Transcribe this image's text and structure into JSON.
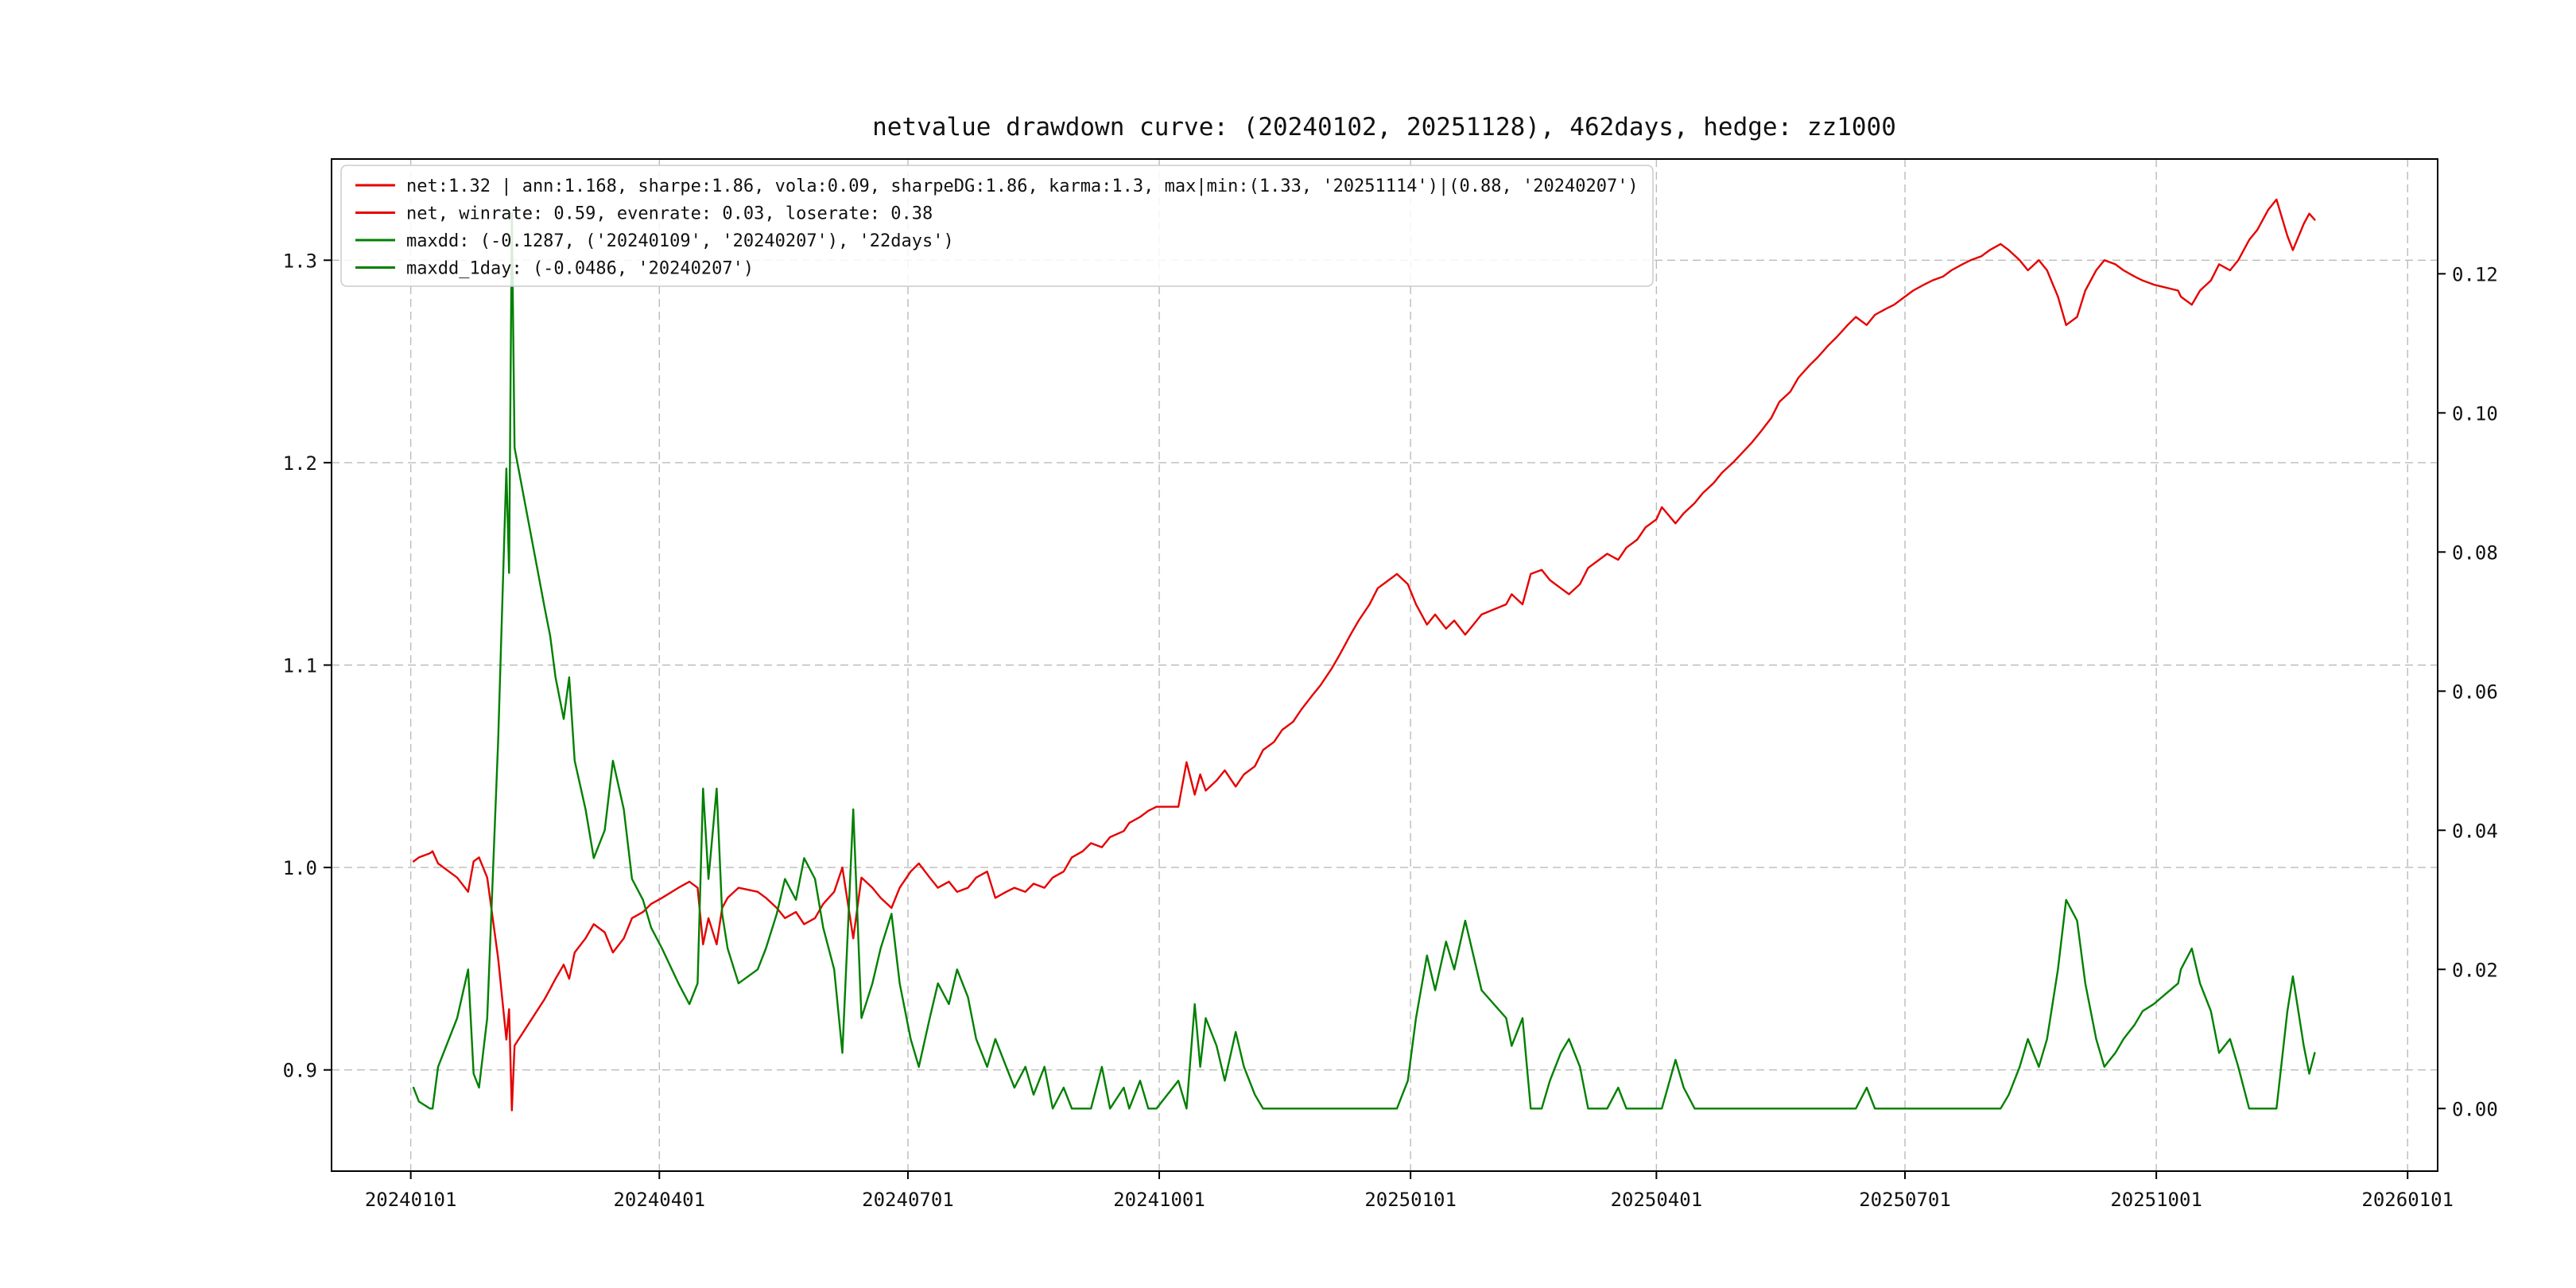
{
  "figure": {
    "background": "#ffffff"
  },
  "legend": {
    "entries": [
      {
        "label": "net:1.32 | ann:1.168, sharpe:1.86, vola:0.09, sharpeDG:1.86, karma:1.3, max|min:(1.33, '20251114')|(0.88, '20240207')",
        "color": "#e60000"
      },
      {
        "label": "net, winrate: 0.59, evenrate: 0.03, loserate: 0.38",
        "color": "#e60000"
      },
      {
        "label": "maxdd: (-0.1287, ('20240109', '20240207'), '22days')",
        "color": "#008000"
      },
      {
        "label": "maxdd_1day: (-0.0486, '20240207')",
        "color": "#008000"
      }
    ]
  },
  "chart_data": {
    "type": "line",
    "title": "netvalue drawdown curve: (20240102, 20251128), 462days, hedge: zz1000",
    "grid": "dashed",
    "legend_position": "upper-left",
    "x_ticks": [
      "20240101",
      "20240401",
      "20240701",
      "20241001",
      "20250101",
      "20250401",
      "20250701",
      "20251001",
      "20260101"
    ],
    "x_range": [
      "20231203",
      "20260112"
    ],
    "left_axis": {
      "ticks": [
        "0.9",
        "1.0",
        "1.1",
        "1.2",
        "1.3"
      ],
      "range": [
        0.85,
        1.35
      ],
      "series": "net value"
    },
    "right_axis": {
      "ticks": [
        "0.00",
        "0.02",
        "0.04",
        "0.06",
        "0.08",
        "0.10",
        "0.12"
      ],
      "range": [
        -0.009,
        0.1365
      ],
      "series": "drawdown"
    },
    "stats": {
      "net": 1.32,
      "ann": 1.168,
      "sharpe": 1.86,
      "vola": 0.09,
      "sharpeDG": 1.86,
      "karma": 1.3,
      "max": [
        1.33,
        "20251114"
      ],
      "min": [
        0.88,
        "20240207"
      ],
      "winrate": 0.59,
      "evenrate": 0.03,
      "loserate": 0.38,
      "maxdd": -0.1287,
      "maxdd_window": [
        "20240109",
        "20240207"
      ],
      "maxdd_duration": "22days",
      "maxdd_1day": -0.0486,
      "maxdd_1day_date": "20240207"
    },
    "dates": [
      "20240102",
      "20240104",
      "20240108",
      "20240109",
      "20240111",
      "20240115",
      "20240118",
      "20240122",
      "20240124",
      "20240126",
      "20240129",
      "20240131",
      "20240202",
      "20240205",
      "20240206",
      "20240207",
      "20240208",
      "20240219",
      "20240221",
      "20240223",
      "20240226",
      "20240228",
      "20240301",
      "20240305",
      "20240308",
      "20240312",
      "20240315",
      "20240319",
      "20240322",
      "20240326",
      "20240329",
      "20240402",
      "20240408",
      "20240412",
      "20240415",
      "20240417",
      "20240419",
      "20240422",
      "20240424",
      "20240426",
      "20240430",
      "20240507",
      "20240510",
      "20240514",
      "20240517",
      "20240521",
      "20240524",
      "20240528",
      "20240531",
      "20240604",
      "20240607",
      "20240611",
      "20240614",
      "20240618",
      "20240621",
      "20240625",
      "20240628",
      "20240702",
      "20240705",
      "20240709",
      "20240712",
      "20240716",
      "20240719",
      "20240723",
      "20240726",
      "20240730",
      "20240802",
      "20240806",
      "20240809",
      "20240813",
      "20240816",
      "20240820",
      "20240823",
      "20240827",
      "20240830",
      "20240903",
      "20240906",
      "20240910",
      "20240913",
      "20240918",
      "20240920",
      "20240924",
      "20240927",
      "20240930",
      "20241008",
      "20241011",
      "20241014",
      "20241016",
      "20241018",
      "20241022",
      "20241025",
      "20241029",
      "20241101",
      "20241105",
      "20241108",
      "20241112",
      "20241115",
      "20241119",
      "20241122",
      "20241126",
      "20241129",
      "20241203",
      "20241206",
      "20241210",
      "20241213",
      "20241217",
      "20241220",
      "20241224",
      "20241227",
      "20241231",
      "20250103",
      "20250107",
      "20250110",
      "20250114",
      "20250117",
      "20250121",
      "20250124",
      "20250127",
      "20250205",
      "20250207",
      "20250211",
      "20250214",
      "20250218",
      "20250221",
      "20250225",
      "20250228",
      "20250304",
      "20250307",
      "20250311",
      "20250314",
      "20250318",
      "20250321",
      "20250325",
      "20250328",
      "20250401",
      "20250403",
      "20250408",
      "20250411",
      "20250415",
      "20250418",
      "20250422",
      "20250425",
      "20250429",
      "20250506",
      "20250509",
      "20250513",
      "20250516",
      "20250520",
      "20250523",
      "20250527",
      "20250530",
      "20250603",
      "20250606",
      "20250610",
      "20250613",
      "20250617",
      "20250620",
      "20250624",
      "20250627",
      "20250701",
      "20250704",
      "20250708",
      "20250711",
      "20250715",
      "20250718",
      "20250722",
      "20250725",
      "20250729",
      "20250801",
      "20250805",
      "20250808",
      "20250812",
      "20250815",
      "20250819",
      "20250822",
      "20250826",
      "20250829",
      "20250902",
      "20250905",
      "20250909",
      "20250912",
      "20250916",
      "20250919",
      "20250923",
      "20250926",
      "20250930",
      "20251009",
      "20251010",
      "20251014",
      "20251017",
      "20251021",
      "20251024",
      "20251028",
      "20251031",
      "20251104",
      "20251107",
      "20251111",
      "20251114",
      "20251118",
      "20251120",
      "20251124",
      "20251126",
      "20251128"
    ],
    "series": [
      {
        "name": "net",
        "axis": "left",
        "color": "#e60000",
        "values": [
          1.003,
          1.005,
          1.007,
          1.008,
          1.002,
          0.998,
          0.995,
          0.988,
          1.003,
          1.005,
          0.995,
          0.975,
          0.955,
          0.915,
          0.93,
          0.88,
          0.912,
          0.935,
          0.94,
          0.945,
          0.952,
          0.945,
          0.958,
          0.965,
          0.972,
          0.968,
          0.958,
          0.965,
          0.975,
          0.978,
          0.982,
          0.985,
          0.99,
          0.993,
          0.99,
          0.962,
          0.975,
          0.962,
          0.98,
          0.985,
          0.99,
          0.988,
          0.985,
          0.98,
          0.975,
          0.978,
          0.972,
          0.975,
          0.982,
          0.988,
          1.0,
          0.965,
          0.995,
          0.99,
          0.985,
          0.98,
          0.99,
          0.998,
          1.002,
          0.995,
          0.99,
          0.993,
          0.988,
          0.99,
          0.995,
          0.998,
          0.985,
          0.988,
          0.99,
          0.988,
          0.992,
          0.99,
          0.995,
          0.998,
          1.005,
          1.008,
          1.012,
          1.01,
          1.015,
          1.018,
          1.022,
          1.025,
          1.028,
          1.03,
          1.03,
          1.052,
          1.036,
          1.046,
          1.038,
          1.043,
          1.048,
          1.04,
          1.046,
          1.05,
          1.058,
          1.062,
          1.068,
          1.072,
          1.078,
          1.085,
          1.09,
          1.098,
          1.105,
          1.115,
          1.122,
          1.13,
          1.138,
          1.142,
          1.145,
          1.14,
          1.13,
          1.12,
          1.125,
          1.118,
          1.122,
          1.115,
          1.12,
          1.125,
          1.13,
          1.135,
          1.13,
          1.145,
          1.147,
          1.142,
          1.138,
          1.135,
          1.14,
          1.148,
          1.152,
          1.155,
          1.152,
          1.158,
          1.162,
          1.168,
          1.172,
          1.178,
          1.17,
          1.175,
          1.18,
          1.185,
          1.19,
          1.195,
          1.2,
          1.21,
          1.215,
          1.222,
          1.23,
          1.235,
          1.242,
          1.248,
          1.252,
          1.258,
          1.262,
          1.268,
          1.272,
          1.268,
          1.273,
          1.276,
          1.278,
          1.282,
          1.285,
          1.288,
          1.29,
          1.292,
          1.295,
          1.298,
          1.3,
          1.302,
          1.305,
          1.308,
          1.305,
          1.3,
          1.295,
          1.3,
          1.295,
          1.282,
          1.268,
          1.272,
          1.285,
          1.295,
          1.3,
          1.298,
          1.295,
          1.292,
          1.29,
          1.288,
          1.285,
          1.282,
          1.278,
          1.285,
          1.29,
          1.298,
          1.295,
          1.3,
          1.31,
          1.315,
          1.325,
          1.33,
          1.312,
          1.305,
          1.318,
          1.323,
          1.32
        ]
      },
      {
        "name": "drawdown",
        "axis": "right",
        "color": "#008000",
        "values": [
          0.003,
          0.001,
          0.0,
          0.0,
          0.006,
          0.01,
          0.013,
          0.02,
          0.005,
          0.003,
          0.013,
          0.033,
          0.053,
          0.092,
          0.077,
          0.1287,
          0.095,
          0.072,
          0.068,
          0.062,
          0.056,
          0.062,
          0.05,
          0.043,
          0.036,
          0.04,
          0.05,
          0.043,
          0.033,
          0.03,
          0.026,
          0.023,
          0.018,
          0.015,
          0.018,
          0.046,
          0.033,
          0.046,
          0.028,
          0.023,
          0.018,
          0.02,
          0.023,
          0.028,
          0.033,
          0.03,
          0.036,
          0.033,
          0.026,
          0.02,
          0.008,
          0.043,
          0.013,
          0.018,
          0.023,
          0.028,
          0.018,
          0.01,
          0.006,
          0.013,
          0.018,
          0.015,
          0.02,
          0.016,
          0.01,
          0.006,
          0.01,
          0.006,
          0.003,
          0.006,
          0.002,
          0.006,
          0.0,
          0.003,
          0.0,
          0.0,
          0.0,
          0.006,
          0.0,
          0.003,
          0.0,
          0.004,
          0.0,
          0.0,
          0.004,
          0.0,
          0.015,
          0.006,
          0.013,
          0.009,
          0.004,
          0.011,
          0.006,
          0.002,
          0.0,
          0.0,
          0.0,
          0.0,
          0.0,
          0.0,
          0.0,
          0.0,
          0.0,
          0.0,
          0.0,
          0.0,
          0.0,
          0.0,
          0.0,
          0.004,
          0.013,
          0.022,
          0.017,
          0.024,
          0.02,
          0.027,
          0.022,
          0.017,
          0.013,
          0.009,
          0.013,
          0.0,
          0.0,
          0.004,
          0.008,
          0.01,
          0.006,
          0.0,
          0.0,
          0.0,
          0.003,
          0.0,
          0.0,
          0.0,
          0.0,
          0.0,
          0.007,
          0.003,
          0.0,
          0.0,
          0.0,
          0.0,
          0.0,
          0.0,
          0.0,
          0.0,
          0.0,
          0.0,
          0.0,
          0.0,
          0.0,
          0.0,
          0.0,
          0.0,
          0.0,
          0.003,
          0.0,
          0.0,
          0.0,
          0.0,
          0.0,
          0.0,
          0.0,
          0.0,
          0.0,
          0.0,
          0.0,
          0.0,
          0.0,
          0.0,
          0.002,
          0.006,
          0.01,
          0.006,
          0.01,
          0.02,
          0.03,
          0.027,
          0.018,
          0.01,
          0.006,
          0.008,
          0.01,
          0.012,
          0.014,
          0.015,
          0.018,
          0.02,
          0.023,
          0.018,
          0.014,
          0.008,
          0.01,
          0.006,
          0.0,
          0.0,
          0.0,
          0.0,
          0.014,
          0.019,
          0.009,
          0.005,
          0.008
        ]
      }
    ]
  }
}
